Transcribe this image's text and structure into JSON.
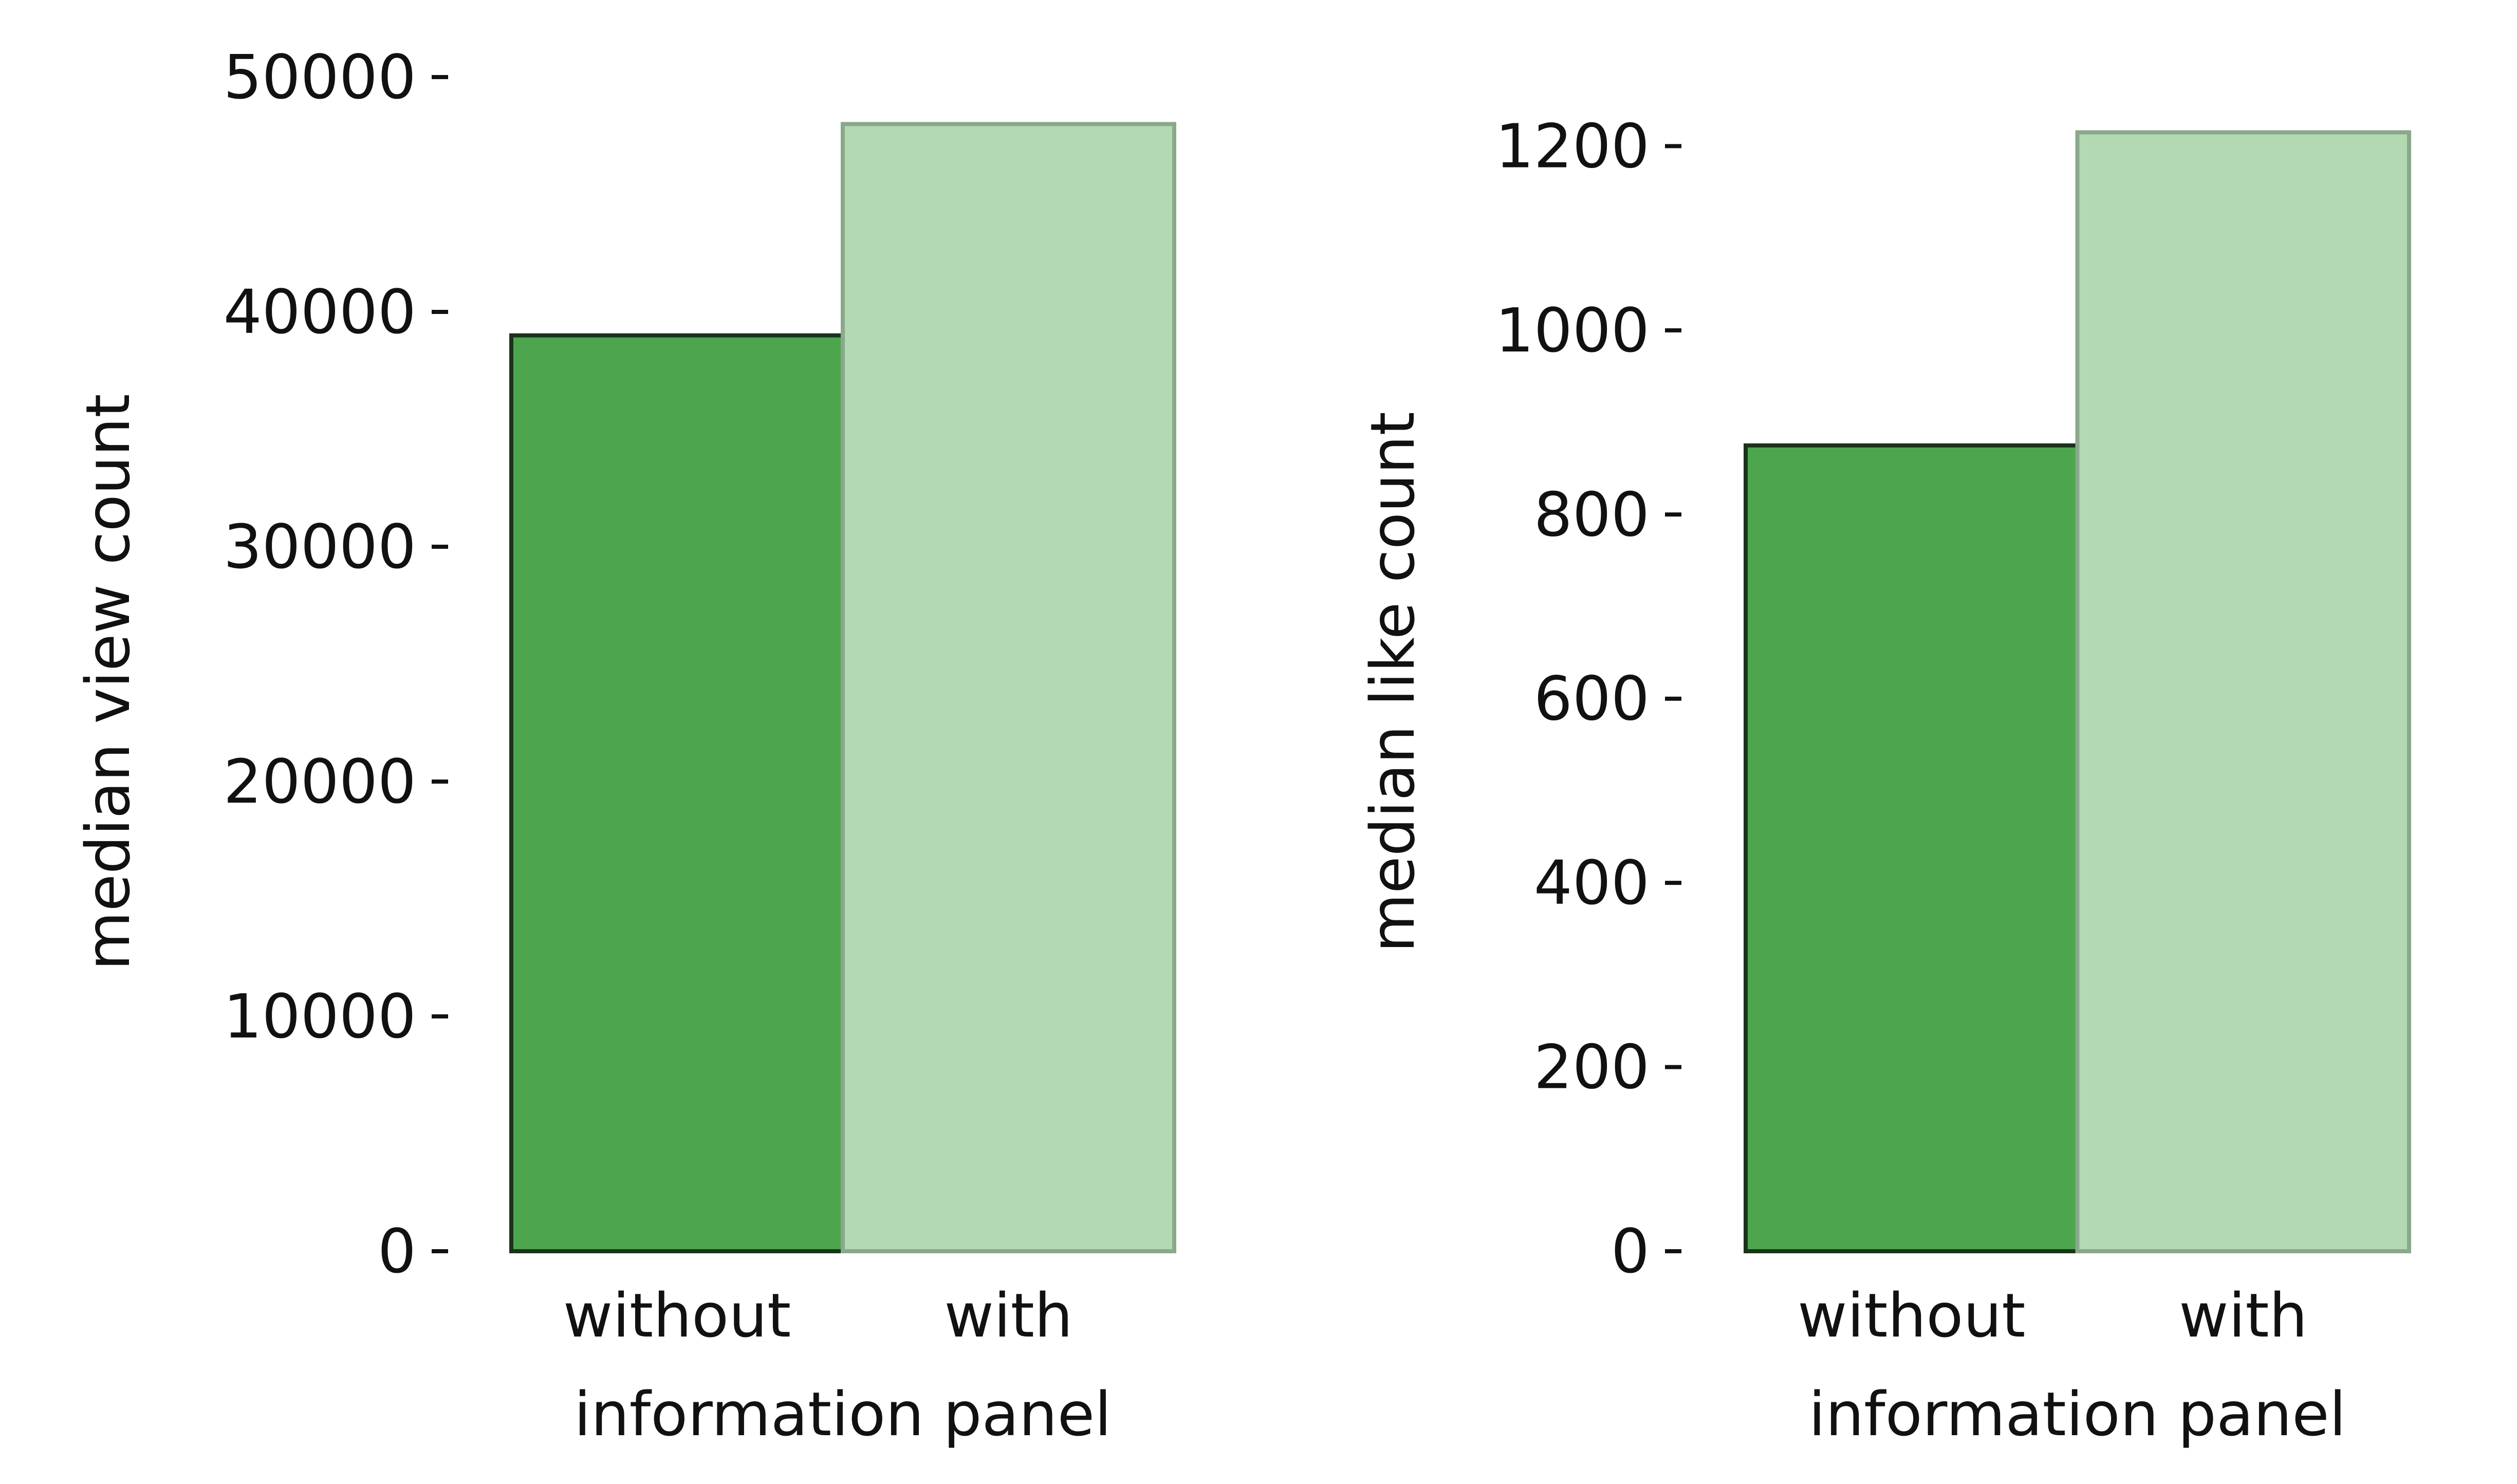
{
  "chart_data": [
    {
      "type": "bar",
      "categories": [
        "without",
        "with"
      ],
      "values": [
        39000,
        48000
      ],
      "xlabel": "information panel",
      "ylabel": "median view count",
      "ylim": [
        0,
        50000
      ],
      "yticks": [
        0,
        10000,
        20000,
        30000,
        40000,
        50000
      ],
      "bar_colors": [
        "#4da64d",
        "#b3d9b3"
      ],
      "edge_colors": [
        "#1a331a",
        "#8aa88a"
      ],
      "grid": false
    },
    {
      "type": "bar",
      "categories": [
        "without",
        "with"
      ],
      "values": [
        875,
        1215
      ],
      "xlabel": "information panel",
      "ylabel": "median like count",
      "ylim": [
        0,
        1275
      ],
      "yticks": [
        0,
        200,
        400,
        600,
        800,
        1000,
        1200
      ],
      "bar_colors": [
        "#4da64d",
        "#b3d9b3"
      ],
      "edge_colors": [
        "#1a331a",
        "#8aa88a"
      ],
      "grid": false
    }
  ]
}
